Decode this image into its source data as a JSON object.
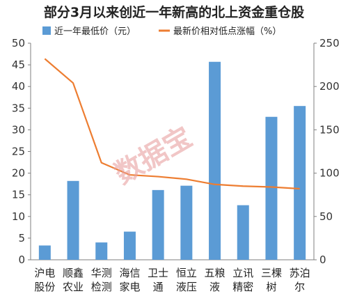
{
  "chart_data": {
    "type": "bar",
    "title": "部分3月以来创近一年新高的北上资金重仓股",
    "categories": [
      [
        "沪电",
        "股份"
      ],
      [
        "顺鑫",
        "农业"
      ],
      [
        "华测",
        "检测"
      ],
      [
        "海信",
        "家电"
      ],
      [
        "卫士",
        "通"
      ],
      [
        "恒立",
        "液压"
      ],
      [
        "五粮",
        "液"
      ],
      [
        "立讯",
        "精密"
      ],
      [
        "三棵",
        "树"
      ],
      [
        "苏泊",
        "尔"
      ]
    ],
    "series": [
      {
        "name": "近一年最低价（元）",
        "type": "bar",
        "axis": "left",
        "color": "#5b9bd5",
        "values": [
          3.3,
          18.2,
          4.0,
          6.5,
          16.1,
          17.1,
          45.7,
          12.6,
          33.0,
          35.5
        ]
      },
      {
        "name": "最新价相对低点涨幅（%）",
        "type": "line",
        "axis": "right",
        "color": "#ed7d31",
        "values": [
          232,
          204,
          112,
          98,
          96,
          93,
          87,
          85,
          84,
          82
        ]
      }
    ],
    "y_left": {
      "min": 0,
      "max": 50,
      "ticks": [
        "0",
        "5",
        "10",
        "15",
        "20",
        "25",
        "30",
        "35",
        "40",
        "45",
        "50"
      ]
    },
    "y_right": {
      "min": 0,
      "max": 250,
      "ticks": [
        "0",
        "50",
        "100",
        "150",
        "200",
        "250"
      ]
    },
    "legend_position": "top",
    "grid": false,
    "watermark": "数据宝"
  }
}
